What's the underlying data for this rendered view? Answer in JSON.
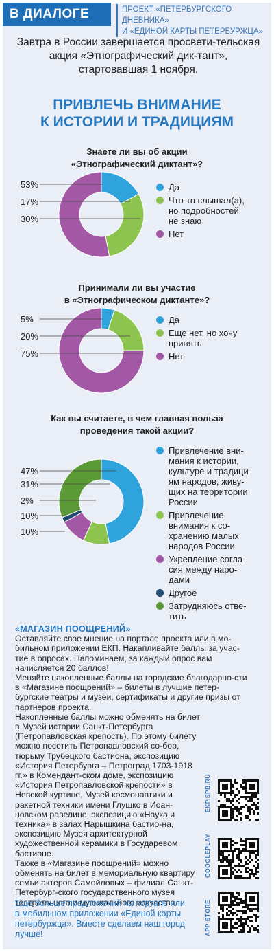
{
  "header": {
    "tag": "В ДИАЛОГЕ",
    "project_line1": "ПРОЕКТ «ПЕТЕРБУРГСКОГО ДНЕВНИКА»",
    "project_line2": "И «ЕДИНОЙ КАРТЫ ПЕТЕРБУРЖЦА»"
  },
  "intro": "Завтра в России завершается просвети-тельская акция «Этнографический дик-тант», стартовавшая 1 ноября.",
  "main_title_line1": "ПРИВЛЕЧЬ ВНИМАНИЕ",
  "main_title_line2": "К ИСТОРИИ И ТРАДИЦИЯМ",
  "colors": {
    "blue": "#2ea3dc",
    "green": "#8dc450",
    "purple": "#a358a6",
    "darkblue": "#234c73",
    "darkgreen": "#5c9a37"
  },
  "chart_data": [
    {
      "type": "pie",
      "title": "Знаете ли вы об акции «Этнографический диктант»?",
      "title_line1": "Знаете ли вы об акции",
      "title_line2": "«Этнографический диктант»?",
      "labels": [
        "53%",
        "17%",
        "30%"
      ],
      "slices": [
        {
          "name": "Да",
          "value": 17,
          "color": "#2ea3dc"
        },
        {
          "name": "Что-то слышал(а), но подробностей не знаю",
          "value": 30,
          "color": "#8dc450"
        },
        {
          "name": "Нет",
          "value": 53,
          "color": "#a358a6"
        }
      ],
      "legend": [
        {
          "lines": [
            "Да"
          ],
          "color": "#2ea3dc"
        },
        {
          "lines": [
            "Что-то слышал(а),",
            "но подробностей",
            "не знаю"
          ],
          "color": "#8dc450"
        },
        {
          "lines": [
            "Нет"
          ],
          "color": "#a358a6"
        }
      ]
    },
    {
      "type": "pie",
      "title": "Принимали ли вы участие в «Этнографическом диктанте»?",
      "title_line1": "Принимали ли вы участие",
      "title_line2": "в «Этнографическом диктанте»?",
      "labels": [
        "5%",
        "20%",
        "75%"
      ],
      "slices": [
        {
          "name": "Да",
          "value": 5,
          "color": "#2ea3dc"
        },
        {
          "name": "Еще нет, но хочу принять",
          "value": 20,
          "color": "#8dc450"
        },
        {
          "name": "Нет",
          "value": 75,
          "color": "#a358a6"
        }
      ],
      "legend": [
        {
          "lines": [
            "Да"
          ],
          "color": "#2ea3dc"
        },
        {
          "lines": [
            "Еще нет, но хочу",
            "принять"
          ],
          "color": "#8dc450"
        },
        {
          "lines": [
            "Нет"
          ],
          "color": "#a358a6"
        }
      ]
    },
    {
      "type": "pie",
      "title": "Как вы считаете, в чем главная польза проведения такой акции?",
      "title_line1": "Как вы считаете, в чем главная польза",
      "title_line2": "проведения такой акции?",
      "labels": [
        "47%",
        "31%",
        "2%",
        "10%",
        "10%"
      ],
      "slices": [
        {
          "name": "Привлечение внимания к истории, культуре и традициям народов, живущих на территории России",
          "value": 47,
          "color": "#2ea3dc"
        },
        {
          "name": "Привлечение внимания к сохранению малых народов России",
          "value": 10,
          "color": "#8dc450"
        },
        {
          "name": "Укрепление согласия между народами",
          "value": 10,
          "color": "#a358a6"
        },
        {
          "name": "Другое",
          "value": 2,
          "color": "#234c73"
        },
        {
          "name": "Затрудняюсь ответить",
          "value": 31,
          "color": "#5c9a37"
        }
      ],
      "legend": [
        {
          "lines": [
            "Привлечение вни-",
            "мания к истории,",
            "культуре и традици-",
            "ям народов, живу-",
            "щих на территории",
            "России"
          ],
          "color": "#2ea3dc"
        },
        {
          "lines": [
            "Привлечение",
            "внимания к со-",
            "хранению малых",
            "народов России"
          ],
          "color": "#8dc450"
        },
        {
          "lines": [
            "Укрепление согла-",
            "сия между наро-",
            "дами"
          ],
          "color": "#a358a6"
        },
        {
          "lines": [
            "Другое"
          ],
          "color": "#234c73"
        },
        {
          "lines": [
            "Затрудняюсь отве-",
            "тить"
          ],
          "color": "#5c9a37"
        }
      ]
    }
  ],
  "promo": {
    "title": "«МАГАЗИН ПООЩРЕНИЙ»",
    "p1": "Оставляйте свое мнение на портале проекта или в мо-бильном приложении ЕКП. Накапливайте баллы за учас-тие в опросах. Напоминаем, за каждый опрос вам начисляется 20 баллов!",
    "p2": "Меняйте накопленные баллы на городские благодарно-сти в «Магазине поощрений» – билеты в лучшие петер-бургские театры и музеи, сертификаты и другие призы от партнеров проекта.",
    "p3": "Накопленные баллы можно обменять на билет в Музей истории Санкт-Петербурга (Петропавловская крепость). По этому билету можно посетить Петропавловский со-бор, тюрьму Трубецкого бастиона, экспозицию «История Петербурга – Петроград 1703-1918 гг.» в Комендант-ском доме, экспозицию «История Петропавловской крепости» в Невской куртине, Музей космонавтики и ракетной техники имени Глушко в Иоан-новском равелине, экспозицию «Наука и техника» в залах Нарышкина бастио-на, экспозицию Музея архитектурной художественной керамики в Государевом бастионе.",
    "p4": "Также в «Магазине поощрений» можно обменять на билет в мемориальную квартиру семьи актеров Самойловых – филиал Санкт-Петербург-ского государственного музея театраль-ного и музыкального искусства."
  },
  "footer": "Еще больше предложений на портале или в мобильном приложении «Единой карты петербуржца». Вместе сделаем наш город лучше!",
  "qr_labels": [
    "EKP.SPB.RU",
    "GOOGLEPLAY",
    "APP STORE"
  ]
}
